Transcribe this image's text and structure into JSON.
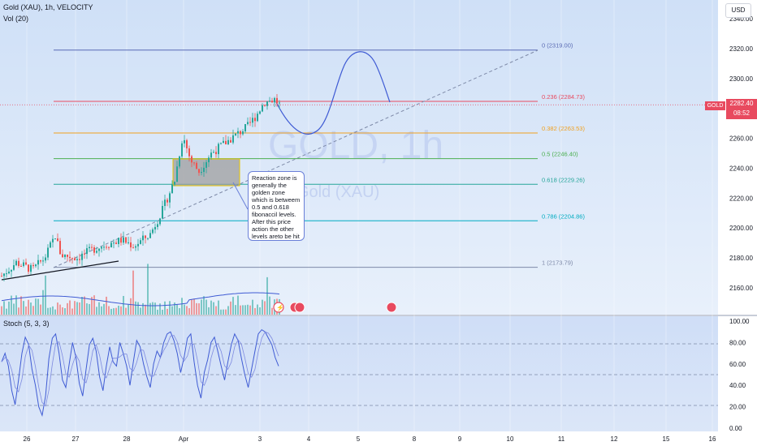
{
  "header": {
    "title": "Gold (XAU), 1h, VELOCITY",
    "volume_label": "Vol (20)",
    "currency_button": "USD",
    "stoch_label": "Stoch (5, 3, 3)"
  },
  "watermark": {
    "symbol": "GOLD, 1h",
    "name": "Gold (XAU)"
  },
  "price_tag": {
    "symbol": "GOLD",
    "price": "2282.40",
    "countdown": "08:52",
    "color": "#e84a5f"
  },
  "annotation_text": "Reaction zone is generally the golden zone which is betweem 0.5 and 0.618 fibonaccil levels. After this price action the other levels areto be hit",
  "chart_data": [
    {
      "type": "line",
      "panel": "price",
      "ylim": [
        2150,
        2345
      ],
      "y_axis_ticks": [
        "2340.00",
        "2320.00",
        "2300.00",
        "2280.00",
        "2260.00",
        "2240.00",
        "2220.00",
        "2200.00",
        "2180.00",
        "2160.00"
      ],
      "x_axis_ticks": [
        "26",
        "27",
        "28",
        "Apr",
        "3",
        "4",
        "5",
        "8",
        "9",
        "10",
        "11",
        "12",
        "15",
        "16"
      ],
      "fib_levels": [
        {
          "label": "0 (2319.00)",
          "value": 2319.0,
          "color": "#5b6bb5"
        },
        {
          "label": "0.236 (2284.73)",
          "value": 2284.73,
          "color": "#e84a5f"
        },
        {
          "label": "0.382 (2263.53)",
          "value": 2263.53,
          "color": "#f0a020"
        },
        {
          "label": "0.5 (2246.40)",
          "value": 2246.4,
          "color": "#4caf50"
        },
        {
          "label": "0.618 (2229.26)",
          "value": 2229.26,
          "color": "#26a69a"
        },
        {
          "label": "0.786 (2204.86)",
          "value": 2204.86,
          "color": "#00acc1"
        },
        {
          "label": "1 (2173.79)",
          "value": 2173.79,
          "color": "#7e8aa8"
        }
      ],
      "candle_color_up": "#26a69a",
      "candle_color_down": "#ef5350"
    },
    {
      "type": "line",
      "panel": "stochastic",
      "ylim": [
        0,
        100
      ],
      "y_axis_ticks": [
        "100.00",
        "80.00",
        "60.00",
        "40.00",
        "20.00",
        "0.00"
      ],
      "series": [
        {
          "values": [
            62,
            70,
            58,
            35,
            22,
            45,
            70,
            85,
            78,
            55,
            40,
            20,
            12,
            30,
            65,
            84,
            88,
            70,
            45,
            38,
            60,
            80,
            66,
            42,
            30,
            55,
            78,
            84,
            72,
            48,
            35,
            58,
            76,
            62,
            58,
            80,
            70,
            58,
            40,
            62,
            82,
            76,
            60,
            48,
            38,
            60,
            72,
            66,
            80,
            88,
            90,
            82,
            70,
            52,
            66,
            84,
            88,
            62,
            40,
            28,
            52,
            64,
            80,
            85,
            72,
            58,
            45,
            62,
            78,
            88,
            82,
            65,
            50,
            38,
            55,
            72,
            88,
            92,
            90,
            84,
            78,
            66,
            58
          ]
        }
      ]
    }
  ]
}
